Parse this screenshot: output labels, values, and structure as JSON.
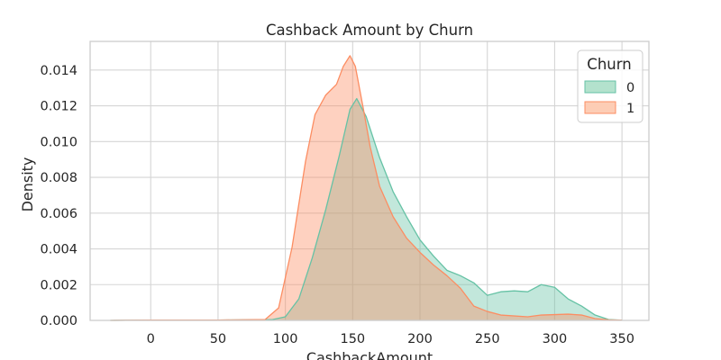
{
  "chart_data": {
    "type": "area",
    "title": "Cashback Amount by Churn",
    "xlabel": "CashbackAmount",
    "ylabel": "Density",
    "xlim": [
      -45,
      370
    ],
    "ylim": [
      0,
      0.0156
    ],
    "x_ticks": [
      0,
      50,
      100,
      150,
      200,
      250,
      300,
      350
    ],
    "y_ticks": [
      0.0,
      0.002,
      0.004,
      0.006,
      0.008,
      0.01,
      0.012,
      0.014
    ],
    "y_tick_labels": [
      "0.000",
      "0.002",
      "0.004",
      "0.006",
      "0.008",
      "0.010",
      "0.012",
      "0.014"
    ],
    "grid": true,
    "legend": {
      "title": "Churn",
      "position": "top-right"
    },
    "series": [
      {
        "name": "0",
        "color": "#66c2a5",
        "fill": "#b3e2cd",
        "points": [
          [
            -30,
            0
          ],
          [
            0,
            2e-05
          ],
          [
            50,
            2e-05
          ],
          [
            90,
            4e-05
          ],
          [
            100,
            0.0002
          ],
          [
            110,
            0.0012
          ],
          [
            120,
            0.0035
          ],
          [
            130,
            0.0062
          ],
          [
            140,
            0.0092
          ],
          [
            148,
            0.0118
          ],
          [
            153,
            0.0124
          ],
          [
            160,
            0.0114
          ],
          [
            170,
            0.0091
          ],
          [
            180,
            0.0072
          ],
          [
            190,
            0.0058
          ],
          [
            200,
            0.0045
          ],
          [
            210,
            0.0036
          ],
          [
            220,
            0.0028
          ],
          [
            230,
            0.0025
          ],
          [
            240,
            0.0021
          ],
          [
            250,
            0.0014
          ],
          [
            260,
            0.0016
          ],
          [
            270,
            0.00165
          ],
          [
            280,
            0.0016
          ],
          [
            290,
            0.002
          ],
          [
            300,
            0.00185
          ],
          [
            310,
            0.0012
          ],
          [
            320,
            0.0008
          ],
          [
            330,
            0.0003
          ],
          [
            340,
            5e-05
          ],
          [
            350,
            1e-05
          ]
        ]
      },
      {
        "name": "1",
        "color": "#fc8d62",
        "fill": "#fdcdb5",
        "points": [
          [
            -30,
            0
          ],
          [
            0,
            2e-05
          ],
          [
            50,
            2e-05
          ],
          [
            85,
            5e-05
          ],
          [
            95,
            0.0007
          ],
          [
            105,
            0.0041
          ],
          [
            115,
            0.0089
          ],
          [
            122,
            0.0115
          ],
          [
            130,
            0.0126
          ],
          [
            138,
            0.0132
          ],
          [
            143,
            0.0142
          ],
          [
            148,
            0.0148
          ],
          [
            152,
            0.0142
          ],
          [
            158,
            0.0118
          ],
          [
            163,
            0.0097
          ],
          [
            170,
            0.0075
          ],
          [
            180,
            0.0058
          ],
          [
            190,
            0.0046
          ],
          [
            200,
            0.0038
          ],
          [
            210,
            0.0031
          ],
          [
            220,
            0.0025
          ],
          [
            230,
            0.0018
          ],
          [
            240,
            0.0008
          ],
          [
            250,
            0.0005
          ],
          [
            260,
            0.0003
          ],
          [
            280,
            0.0002
          ],
          [
            290,
            0.0003
          ],
          [
            310,
            0.00035
          ],
          [
            320,
            0.0003
          ],
          [
            330,
            0.0001
          ],
          [
            340,
            3e-05
          ],
          [
            350,
            1e-05
          ]
        ]
      }
    ]
  }
}
